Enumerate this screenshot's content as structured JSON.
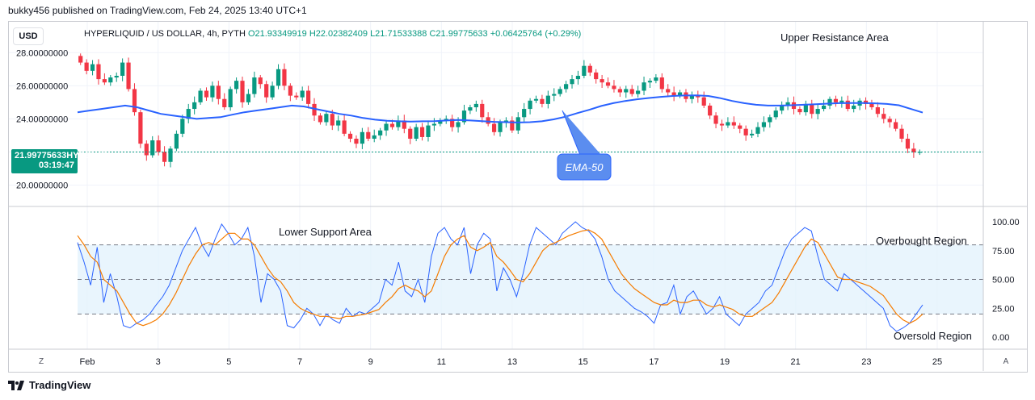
{
  "header": {
    "caption": "bukky456 published on TradingView.com, Feb 24, 2025 13:40 UTC+1",
    "currency": "USD",
    "symbol_line": "HYPERLIQUID / US DOLLAR, 4h, PYTH",
    "open": "O21.93349919",
    "high": "H22.02382409",
    "low": "L21.71533388",
    "close": "C21.99775633",
    "change": "+0.06425764 (+0.29%)"
  },
  "price_tag": {
    "price": "21.99775633",
    "symbol": "HYPEUSD",
    "countdown": "03:19:47"
  },
  "footer": {
    "brand": "TradingView",
    "z_label": "Z",
    "a_label": "A"
  },
  "colors": {
    "up": "#089981",
    "down": "#f23645",
    "ema": "#2962ff",
    "k_line": "#2962ff",
    "d_line": "#f57c00",
    "band": "#e3f2fd"
  },
  "chart_data": [
    {
      "type": "candlestick",
      "timeframe": "4h",
      "ylim": [
        19.0,
        28.5
      ],
      "y_ticks": [
        "20.00000000",
        "24.00000000",
        "26.00000000",
        "28.00000000"
      ],
      "x_ticks": [
        "Feb",
        "3",
        "5",
        "7",
        "9",
        "11",
        "13",
        "15",
        "17",
        "19",
        "21",
        "23",
        "25"
      ],
      "last_price": 21.99775633,
      "close_series": [
        27.4,
        26.9,
        27.3,
        26.4,
        26.2,
        26.5,
        26.6,
        27.4,
        25.8,
        24.4,
        22.5,
        21.8,
        22.7,
        22.0,
        21.4,
        22.2,
        23.1,
        24.0,
        24.6,
        25.0,
        25.7,
        25.3,
        26.0,
        25.2,
        24.7,
        25.8,
        26.3,
        25.0,
        25.5,
        26.5,
        26.1,
        25.3,
        26.0,
        27.0,
        26.0,
        25.4,
        25.3,
        25.7,
        24.9,
        24.2,
        23.8,
        24.3,
        23.6,
        23.9,
        23.1,
        22.8,
        22.5,
        23.2,
        22.8,
        23.0,
        23.3,
        23.7,
        23.5,
        23.9,
        23.4,
        22.8,
        23.5,
        22.9,
        23.6,
        23.7,
        23.9,
        24.0,
        23.5,
        23.8,
        24.5,
        24.7,
        24.9,
        24.1,
        23.7,
        23.2,
        23.8,
        23.9,
        23.3,
        24.1,
        24.6,
        25.1,
        25.2,
        24.9,
        25.4,
        25.5,
        25.8,
        26.1,
        26.4,
        26.6,
        27.2,
        26.8,
        26.4,
        26.2,
        26.0,
        25.8,
        25.6,
        25.8,
        25.5,
        25.7,
        26.2,
        26.3,
        26.5,
        25.8,
        25.6,
        25.4,
        25.6,
        25.2,
        25.4,
        25.3,
        24.8,
        24.2,
        23.7,
        23.6,
        23.8,
        23.6,
        23.4,
        23.0,
        23.1,
        23.5,
        23.8,
        24.1,
        24.5,
        24.8,
        25.0,
        24.6,
        24.4,
        24.9,
        24.3,
        24.6,
        24.8,
        25.2,
        25.0,
        25.1,
        24.6,
        24.8,
        25.1,
        24.9,
        24.7,
        24.3,
        24.0,
        23.8,
        23.4,
        22.8,
        22.2,
        21.97,
        21.998
      ],
      "ema_50": [
        24.4,
        24.5,
        24.6,
        24.7,
        24.8,
        24.7,
        24.5,
        24.3,
        24.2,
        24.1,
        24.0,
        24.05,
        24.1,
        24.25,
        24.4,
        24.5,
        24.6,
        24.7,
        24.8,
        24.75,
        24.6,
        24.45,
        24.3,
        24.2,
        24.05,
        23.95,
        23.88,
        23.85,
        23.84,
        23.85,
        23.86,
        23.9,
        23.93,
        23.9,
        23.86,
        23.82,
        23.8,
        23.78,
        23.8,
        23.85,
        23.97,
        24.13,
        24.35,
        24.55,
        24.78,
        24.95,
        25.08,
        25.18,
        25.26,
        25.33,
        25.38,
        25.41,
        25.42,
        25.38,
        25.25,
        25.08,
        24.95,
        24.85,
        24.8,
        24.8,
        24.82,
        24.85,
        24.88,
        24.92,
        24.95,
        24.96,
        24.96,
        24.94,
        24.9,
        24.82,
        24.6,
        24.38
      ],
      "annotations": [
        "Upper Resistance Area",
        "EMA-50"
      ]
    },
    {
      "type": "line",
      "indicator": "Stochastic RSI",
      "ylim": [
        0,
        100
      ],
      "y_ticks": [
        "100.00",
        "75.00",
        "50.00",
        "25.00",
        "0.00"
      ],
      "bands": {
        "overbought": 80,
        "middle": 50,
        "oversold": 20
      },
      "series": [
        {
          "values": [
            82,
            65,
            45,
            78,
            30,
            55,
            35,
            10,
            8,
            12,
            15,
            20,
            28,
            35,
            45,
            60,
            75,
            85,
            95,
            80,
            70,
            85,
            98,
            90,
            80,
            85,
            95,
            70,
            30,
            55,
            50,
            40,
            10,
            8,
            15,
            25,
            20,
            10,
            20,
            15,
            12,
            25,
            18,
            22,
            20,
            25,
            30,
            50,
            45,
            65,
            40,
            35,
            50,
            30,
            70,
            90,
            95,
            85,
            80,
            95,
            55,
            80,
            90,
            85,
            40,
            60,
            50,
            35,
            55,
            80,
            95,
            90,
            85,
            80,
            90,
            95,
            100,
            95,
            92,
            85,
            70,
            50,
            40,
            35,
            30,
            25,
            22,
            18,
            12,
            28,
            30,
            45,
            20,
            35,
            40,
            30,
            20,
            25,
            35,
            20,
            15,
            10,
            20,
            25,
            30,
            40,
            45,
            60,
            75,
            85,
            90,
            95,
            92,
            70,
            50,
            45,
            40,
            55,
            50,
            45,
            40,
            35,
            30,
            25,
            10,
            5,
            8,
            12,
            20,
            28
          ]
        },
        {
          "values": [
            88,
            80,
            70,
            65,
            50,
            45,
            40,
            30,
            20,
            12,
            10,
            12,
            15,
            20,
            28,
            38,
            50,
            62,
            72,
            80,
            82,
            80,
            85,
            90,
            90,
            85,
            85,
            80,
            70,
            60,
            52,
            48,
            40,
            30,
            25,
            22,
            20,
            18,
            18,
            17,
            16,
            18,
            18,
            19,
            20,
            22,
            24,
            30,
            35,
            42,
            45,
            42,
            40,
            35,
            40,
            55,
            70,
            80,
            85,
            88,
            78,
            75,
            78,
            82,
            70,
            65,
            58,
            50,
            48,
            55,
            65,
            75,
            80,
            82,
            85,
            88,
            90,
            92,
            93,
            90,
            85,
            75,
            65,
            55,
            48,
            42,
            38,
            34,
            30,
            28,
            28,
            32,
            30,
            30,
            32,
            32,
            28,
            26,
            28,
            26,
            24,
            20,
            18,
            18,
            22,
            26,
            30,
            38,
            48,
            58,
            68,
            78,
            85,
            82,
            72,
            62,
            52,
            50,
            50,
            48,
            46,
            44,
            40,
            36,
            28,
            20,
            15,
            12,
            15,
            20
          ]
        }
      ],
      "annotations": [
        "Lower Support Area",
        "Overbought Region",
        "Oversold Region"
      ]
    }
  ]
}
